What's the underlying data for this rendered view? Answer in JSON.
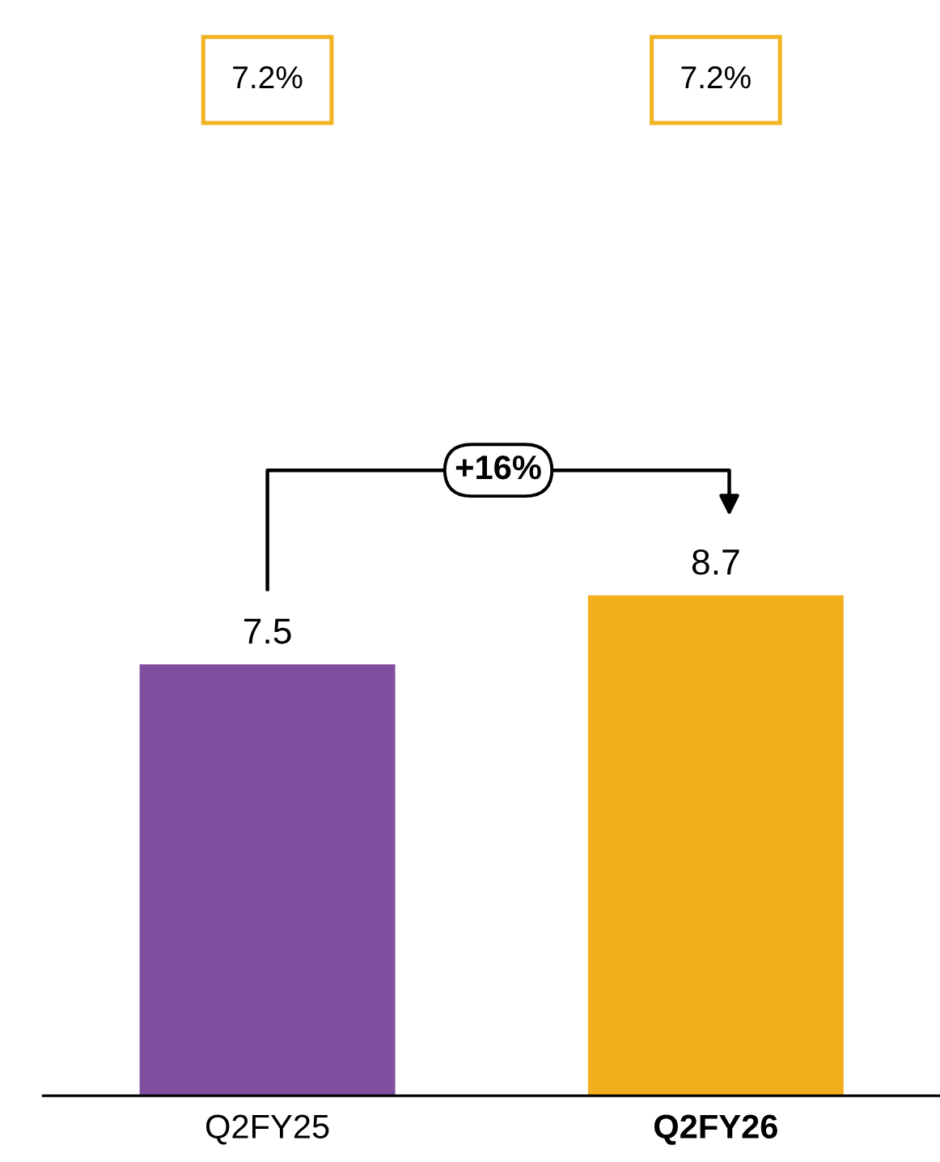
{
  "chart_data": {
    "type": "bar",
    "categories": [
      "Q2FY25",
      "Q2FY26"
    ],
    "values": [
      7.5,
      8.7
    ],
    "colors": [
      "#7f4f9f",
      "#f2ae1c"
    ],
    "data_labels": true,
    "annotations": [
      "7.2%",
      "7.2%",
      "+16%"
    ]
  }
}
